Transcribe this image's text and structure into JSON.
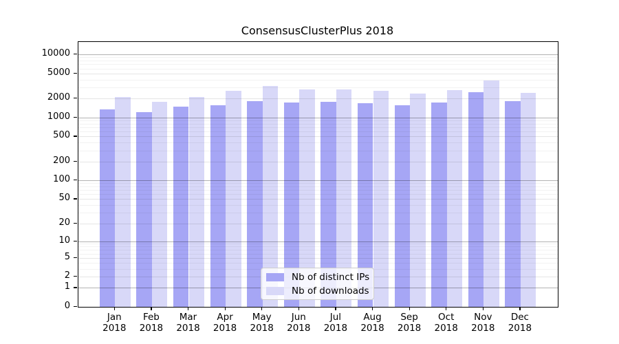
{
  "figure": {
    "title": "ConsensusClusterPlus 2018"
  },
  "axis": {
    "y_tick_labels": [
      "0",
      "1",
      "2",
      "5",
      "10",
      "20",
      "50",
      "100",
      "200",
      "500",
      "1000",
      "2000",
      "5000",
      "10000"
    ],
    "y_tick_values": [
      0,
      1,
      2,
      5,
      10,
      20,
      50,
      100,
      200,
      500,
      1000,
      2000,
      5000,
      10000
    ],
    "y_minor_values": [
      3,
      4,
      6,
      7,
      8,
      9,
      30,
      40,
      60,
      70,
      80,
      90,
      300,
      400,
      600,
      700,
      800,
      900,
      3000,
      4000,
      6000,
      7000,
      8000,
      9000
    ],
    "x_tick_months": [
      "Jan",
      "Feb",
      "Mar",
      "Apr",
      "May",
      "Jun",
      "Jul",
      "Aug",
      "Sep",
      "Oct",
      "Nov",
      "Dec"
    ],
    "x_tick_year": "2018"
  },
  "colors": {
    "bar_distinct_ips": "#a6a6f5",
    "bar_downloads": "#d8d8f8",
    "grid_major": "rgba(0,0,0,0.30)",
    "grid_minor_labeled": "rgba(0,0,0,0.10)",
    "grid_minor_unlabeled": "rgba(0,0,0,0.05)",
    "spine": "#000000"
  },
  "chart_data": {
    "type": "bar",
    "title": "ConsensusClusterPlus 2018",
    "categories": [
      "Jan 2018",
      "Feb 2018",
      "Mar 2018",
      "Apr 2018",
      "May 2018",
      "Jun 2018",
      "Jul 2018",
      "Aug 2018",
      "Sep 2018",
      "Oct 2018",
      "Nov 2018",
      "Dec 2018"
    ],
    "series": [
      {
        "name": "Nb of distinct IPs",
        "values": [
          1340,
          1220,
          1500,
          1550,
          1800,
          1750,
          1760,
          1675,
          1570,
          1730,
          2500,
          1820
        ]
      },
      {
        "name": "Nb of downloads",
        "values": [
          2100,
          1775,
          2140,
          2640,
          3200,
          2820,
          2770,
          2680,
          2430,
          2720,
          3850,
          2470
        ]
      }
    ],
    "yscale": "log1p",
    "ylim": [
      0,
      15500
    ],
    "y_ticks": [
      0,
      1,
      2,
      5,
      10,
      20,
      50,
      100,
      200,
      500,
      1000,
      2000,
      5000,
      10000
    ],
    "grid": true,
    "legend_position": "lower center"
  }
}
